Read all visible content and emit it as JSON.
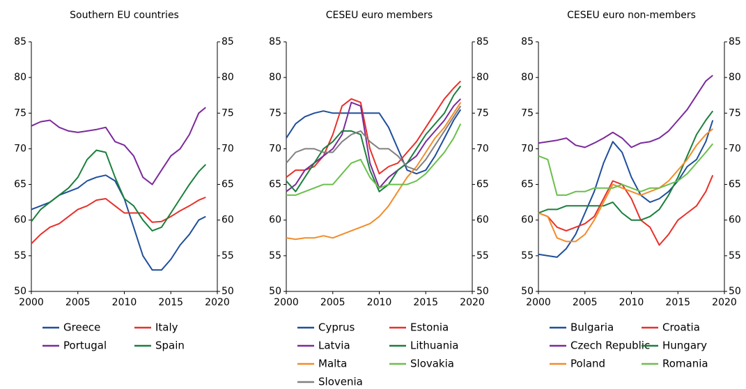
{
  "chart_data": [
    {
      "type": "line",
      "title": "Southern EU countries",
      "x": [
        2000,
        2001,
        2002,
        2003,
        2004,
        2005,
        2006,
        2007,
        2008,
        2009,
        2010,
        2011,
        2012,
        2013,
        2014,
        2015,
        2016,
        2017,
        2018,
        2018.75
      ],
      "series": [
        {
          "name": "Greece",
          "color": "#1f4e9c",
          "values": [
            61.5,
            62,
            62.5,
            63.5,
            64,
            64.5,
            65.5,
            66,
            66.3,
            65.5,
            63,
            59,
            55,
            53,
            53,
            54.5,
            56.5,
            58,
            60,
            60.5
          ]
        },
        {
          "name": "Italy",
          "color": "#e8302a",
          "values": [
            56.7,
            58,
            59,
            59.5,
            60.5,
            61.5,
            62,
            62.8,
            63,
            62,
            61,
            61,
            61,
            59.7,
            59.8,
            60.5,
            61.3,
            62,
            62.8,
            63.2
          ]
        },
        {
          "name": "Portugal",
          "color": "#7b2a9b",
          "values": [
            73.2,
            73.8,
            74,
            73,
            72.5,
            72.3,
            72.5,
            72.7,
            73,
            71,
            70.5,
            69,
            66,
            65,
            67,
            69,
            70,
            72,
            75,
            75.8
          ]
        },
        {
          "name": "Spain",
          "color": "#1a7f3c",
          "values": [
            59.8,
            61.5,
            62.5,
            63.5,
            64.5,
            66,
            68.5,
            69.8,
            69.5,
            66,
            63,
            62,
            60,
            58.5,
            59,
            61,
            63,
            65,
            66.8,
            67.8
          ]
        }
      ],
      "xlim": [
        2000,
        2020
      ],
      "xticks": [
        2000,
        2005,
        2010,
        2015,
        2020
      ],
      "ylim": [
        50,
        85
      ],
      "yticks": [
        50,
        55,
        60,
        65,
        70,
        75,
        80,
        85
      ],
      "y2lim": [
        50,
        85
      ],
      "y2ticks": [
        50,
        55,
        60,
        65,
        70,
        75,
        80,
        85
      ]
    },
    {
      "type": "line",
      "title": "CESEU euro members",
      "x": [
        2000,
        2001,
        2002,
        2003,
        2004,
        2005,
        2006,
        2007,
        2008,
        2009,
        2010,
        2011,
        2012,
        2013,
        2014,
        2015,
        2016,
        2017,
        2018,
        2018.75
      ],
      "series": [
        {
          "name": "Cyprus",
          "color": "#1f4e9c",
          "values": [
            71.5,
            73.5,
            74.5,
            75,
            75.3,
            75,
            75,
            75,
            75,
            75,
            75,
            73,
            70,
            67,
            66.5,
            67,
            69,
            71.5,
            74,
            75.5
          ]
        },
        {
          "name": "Estonia",
          "color": "#e8302a",
          "values": [
            66,
            67,
            67,
            67.5,
            69,
            72,
            76,
            77,
            76.5,
            70,
            66.5,
            67.5,
            68,
            69.5,
            71,
            73,
            75,
            77,
            78.5,
            79.5
          ]
        },
        {
          "name": "Latvia",
          "color": "#7b2a9b",
          "values": [
            64,
            65,
            67,
            68,
            69,
            70,
            72,
            76.5,
            76,
            68,
            64.5,
            66,
            67,
            68,
            69,
            71,
            72.5,
            74,
            76,
            77
          ]
        },
        {
          "name": "Lithuania",
          "color": "#1a7f3c",
          "values": [
            65.5,
            64,
            66,
            68,
            70,
            71,
            72.5,
            72.5,
            72,
            67,
            64,
            65,
            67,
            68,
            70,
            72,
            73.5,
            75,
            77.5,
            78.8
          ]
        },
        {
          "name": "Malta",
          "color": "#f28c28",
          "values": [
            57.5,
            57.3,
            57.5,
            57.5,
            57.8,
            57.5,
            58,
            58.5,
            59,
            59.5,
            60.5,
            62,
            64,
            66,
            67.5,
            69.5,
            71.5,
            73,
            75,
            76.5
          ]
        },
        {
          "name": "Slovakia",
          "color": "#6abf4b",
          "values": [
            63.5,
            63.5,
            64,
            64.5,
            65,
            65,
            66.5,
            68,
            68.5,
            66,
            64.5,
            65,
            65,
            65,
            65.5,
            66.5,
            68,
            69.5,
            71.5,
            73.5
          ]
        },
        {
          "name": "Slovenia",
          "color": "#808080",
          "values": [
            68,
            69.5,
            70,
            70,
            69.5,
            69.5,
            71,
            72,
            72.5,
            71,
            70,
            70,
            69,
            67.5,
            67,
            68.5,
            70.5,
            72.5,
            74.5,
            76
          ]
        }
      ],
      "xlim": [
        2000,
        2020
      ],
      "xticks": [
        2000,
        2005,
        2010,
        2015,
        2020
      ],
      "ylim": [
        50,
        85
      ],
      "yticks": [
        50,
        55,
        60,
        65,
        70,
        75,
        80,
        85
      ],
      "y2lim": [
        50,
        85
      ],
      "y2ticks": [
        50,
        55,
        60,
        65,
        70,
        75,
        80,
        85
      ]
    },
    {
      "type": "line",
      "title": "CESEU euro non-members",
      "x": [
        2000,
        2001,
        2002,
        2003,
        2004,
        2005,
        2006,
        2007,
        2008,
        2009,
        2010,
        2011,
        2012,
        2013,
        2014,
        2015,
        2016,
        2017,
        2018,
        2018.75
      ],
      "series": [
        {
          "name": "Bulgaria",
          "color": "#1f4e9c",
          "values": [
            55.2,
            55,
            54.8,
            56,
            58,
            61,
            64,
            68,
            71,
            69.5,
            66,
            63.5,
            62.5,
            63,
            64,
            65.5,
            67.5,
            68.5,
            71,
            74
          ]
        },
        {
          "name": "Croatia",
          "color": "#e8302a",
          "values": [
            61,
            60.5,
            59,
            58.5,
            59,
            59.5,
            60.5,
            63,
            65.5,
            65,
            63,
            60,
            59,
            56.5,
            58,
            60,
            61,
            62,
            64,
            66.3
          ]
        },
        {
          "name": "Czech Republic",
          "color": "#7b2a9b",
          "values": [
            70.8,
            71,
            71.2,
            71.5,
            70.5,
            70.2,
            70.8,
            71.5,
            72.3,
            71.5,
            70.2,
            70.8,
            71,
            71.5,
            72.5,
            74,
            75.5,
            77.5,
            79.5,
            80.3
          ]
        },
        {
          "name": "Hungary",
          "color": "#1a7f3c",
          "values": [
            61,
            61.5,
            61.5,
            62,
            62,
            62,
            62,
            62,
            62.5,
            61,
            60,
            60,
            60.5,
            61.5,
            63.5,
            66,
            69,
            72,
            74,
            75.3
          ]
        },
        {
          "name": "Poland",
          "color": "#f28c28",
          "values": [
            61,
            60.5,
            57.5,
            57,
            57,
            58,
            60,
            62.5,
            65,
            64.5,
            64,
            63.5,
            64,
            64.5,
            65.5,
            67,
            68.5,
            70.5,
            72,
            72.8
          ]
        },
        {
          "name": "Romania",
          "color": "#6abf4b",
          "values": [
            69,
            68.5,
            63.5,
            63.5,
            64,
            64,
            64.5,
            64.5,
            64.5,
            65,
            64.5,
            64,
            64.5,
            64.5,
            65,
            65.5,
            66.5,
            68,
            69.5,
            70.7
          ]
        }
      ],
      "xlim": [
        2000,
        2020
      ],
      "xticks": [
        2000,
        2005,
        2010,
        2015,
        2020
      ],
      "ylim": [
        50,
        85
      ],
      "yticks": [
        50,
        55,
        60,
        65,
        70,
        75,
        80,
        85
      ],
      "y2lim": [
        50,
        85
      ],
      "y2ticks": [
        50,
        55,
        60,
        65,
        70,
        75,
        80,
        85
      ]
    }
  ]
}
